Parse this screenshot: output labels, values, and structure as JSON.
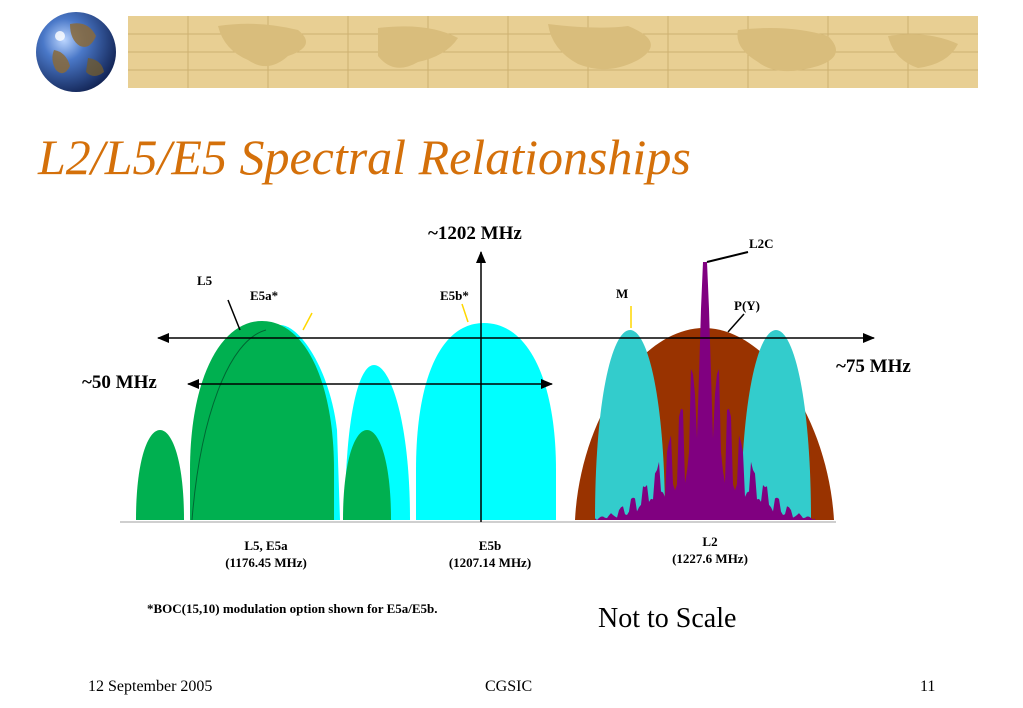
{
  "slide": {
    "title": "L2/L5/E5 Spectral Relationships",
    "footer_date": "12 September 2005",
    "footer_center": "CGSIC",
    "footer_page": "11"
  },
  "diagram": {
    "center_freq_label": "~1202 MHz",
    "left_span_label": "~50 MHz",
    "right_span_label": "~75 MHz",
    "signals": {
      "l5": "L5",
      "e5a": "E5a*",
      "e5b": "E5b*",
      "m": "M",
      "l2c": "L2C",
      "py": "P(Y)"
    },
    "bands": {
      "l5_e5a_name": "L5, E5a",
      "l5_e5a_freq": "(1176.45 MHz)",
      "e5b_name": "E5b",
      "e5b_freq": "(1207.14 MHz)",
      "l2_name": "L2",
      "l2_freq": "(1227.6 MHz)"
    },
    "footnote": "*BOC(15,10) modulation option shown for E5a/E5b.",
    "scale_note": "Not to Scale"
  },
  "colors": {
    "title": "#d4700a",
    "banner": "#e8cf93",
    "l5_green": "#00b050",
    "galileo_cyan": "#00ffff",
    "m_code_teal": "#33cccc",
    "py_brown": "#993300",
    "l2c_purple": "#800080"
  }
}
